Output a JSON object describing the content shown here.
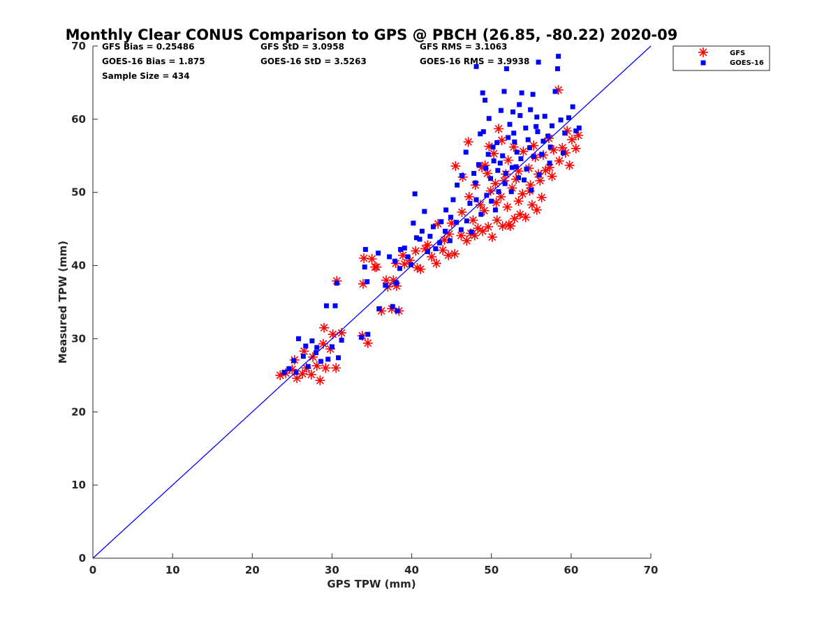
{
  "chart_data": {
    "type": "scatter",
    "title": "Monthly Clear CONUS Comparison to GPS @ PBCH (26.85, -80.22) 2020-09",
    "xlabel": "GPS TPW (mm)",
    "ylabel": "Measured TPW (mm)",
    "xlim": [
      0,
      70
    ],
    "ylim": [
      0,
      70
    ],
    "xticks": [
      "0",
      "10",
      "20",
      "30",
      "40",
      "50",
      "60",
      "70"
    ],
    "yticks": [
      "0",
      "10",
      "20",
      "30",
      "40",
      "50",
      "60",
      "70"
    ],
    "grid": false,
    "legend_position": "top-right, outside plot",
    "stats": {
      "gfs_bias": "GFS Bias = 0.25486",
      "gfs_std": "GFS StD = 3.0958",
      "gfs_rms": "GFS RMS = 3.1063",
      "goes_bias": "GOES-16 Bias = 1.875",
      "goes_std": "GOES-16 StD = 3.5263",
      "goes_rms": "GOES-16 RMS = 3.9938",
      "sample_size": "Sample Size = 434"
    },
    "reference_line": {
      "x": [
        0,
        70
      ],
      "y": [
        0,
        70
      ],
      "color": "#0000ff"
    },
    "series": [
      {
        "name": "GFS",
        "marker": "asterisk",
        "color": "#ff0000",
        "points": [
          [
            23.5,
            25.0
          ],
          [
            24.2,
            25.3
          ],
          [
            25.0,
            25.8
          ],
          [
            25.6,
            24.6
          ],
          [
            26.3,
            25.2
          ],
          [
            26.8,
            26.0
          ],
          [
            27.4,
            25.1
          ],
          [
            28.1,
            26.3
          ],
          [
            28.5,
            24.3
          ],
          [
            29.2,
            26.0
          ],
          [
            29.8,
            28.6
          ],
          [
            30.5,
            26.0
          ],
          [
            25.3,
            27.1
          ],
          [
            26.5,
            28.3
          ],
          [
            27.6,
            27.5
          ],
          [
            28.9,
            29.3
          ],
          [
            29.0,
            31.5
          ],
          [
            30.1,
            30.6
          ],
          [
            30.6,
            37.9
          ],
          [
            31.2,
            30.8
          ],
          [
            33.8,
            30.4
          ],
          [
            34.5,
            29.4
          ],
          [
            33.9,
            37.5
          ],
          [
            34.0,
            41.0
          ],
          [
            35.0,
            40.9
          ],
          [
            35.6,
            39.8
          ],
          [
            36.2,
            33.8
          ],
          [
            37.0,
            37.1
          ],
          [
            37.7,
            38.0
          ],
          [
            38.1,
            37.2
          ],
          [
            37.5,
            34.1
          ],
          [
            38.4,
            33.8
          ],
          [
            38.0,
            40.3
          ],
          [
            38.9,
            41.4
          ],
          [
            39.8,
            40.7
          ],
          [
            40.5,
            42.0
          ],
          [
            41.1,
            39.5
          ],
          [
            41.7,
            42.3
          ],
          [
            42.5,
            41.2
          ],
          [
            43.1,
            40.3
          ],
          [
            43.9,
            42.1
          ],
          [
            44.6,
            41.4
          ],
          [
            45.4,
            41.6
          ],
          [
            44.1,
            43.5
          ],
          [
            45.0,
            45.8
          ],
          [
            46.2,
            44.1
          ],
          [
            46.9,
            43.4
          ],
          [
            47.4,
            44.4
          ],
          [
            48.3,
            45.1
          ],
          [
            48.9,
            44.7
          ],
          [
            49.6,
            45.3
          ],
          [
            50.1,
            43.9
          ],
          [
            50.7,
            46.2
          ],
          [
            51.4,
            45.4
          ],
          [
            52.2,
            45.6
          ],
          [
            52.9,
            46.4
          ],
          [
            53.6,
            47.0
          ],
          [
            54.3,
            46.6
          ],
          [
            55.1,
            48.3
          ],
          [
            55.7,
            47.6
          ],
          [
            45.5,
            53.6
          ],
          [
            46.4,
            52.1
          ],
          [
            47.1,
            56.9
          ],
          [
            48.0,
            51.0
          ],
          [
            48.8,
            53.4
          ],
          [
            49.5,
            52.6
          ],
          [
            50.3,
            55.3
          ],
          [
            50.9,
            58.7
          ],
          [
            51.6,
            51.6
          ],
          [
            52.1,
            54.4
          ],
          [
            52.8,
            56.2
          ],
          [
            53.4,
            52.9
          ],
          [
            54.0,
            55.6
          ],
          [
            54.7,
            53.3
          ],
          [
            55.3,
            56.4
          ],
          [
            55.9,
            52.5
          ],
          [
            56.5,
            55.1
          ],
          [
            57.2,
            57.4
          ],
          [
            57.8,
            55.8
          ],
          [
            58.4,
            64.0
          ],
          [
            58.9,
            56.1
          ],
          [
            59.5,
            58.4
          ],
          [
            60.1,
            57.2
          ],
          [
            60.6,
            56.0
          ],
          [
            60.9,
            57.8
          ],
          [
            59.8,
            53.7
          ],
          [
            57.6,
            52.2
          ],
          [
            56.8,
            53.0
          ],
          [
            47.2,
            49.4
          ],
          [
            48.6,
            48.3
          ],
          [
            49.9,
            50.2
          ],
          [
            51.2,
            49.4
          ],
          [
            52.6,
            50.6
          ],
          [
            53.9,
            49.8
          ],
          [
            46.3,
            47.3
          ],
          [
            47.7,
            46.2
          ],
          [
            49.1,
            47.5
          ],
          [
            50.6,
            48.6
          ],
          [
            52.0,
            48.0
          ],
          [
            53.4,
            48.8
          ],
          [
            54.8,
            50.2
          ],
          [
            56.1,
            51.6
          ],
          [
            57.3,
            53.4
          ],
          [
            58.5,
            54.3
          ],
          [
            59.3,
            55.4
          ],
          [
            55.5,
            54.8
          ],
          [
            51.8,
            52.5
          ],
          [
            50.5,
            51.2
          ],
          [
            49.2,
            53.7
          ],
          [
            53.1,
            51.8
          ],
          [
            47.9,
            44.1
          ],
          [
            52.4,
            45.4
          ],
          [
            44.7,
            44.3
          ],
          [
            43.3,
            45.7
          ],
          [
            42.0,
            42.8
          ],
          [
            40.7,
            39.7
          ],
          [
            39.1,
            40.2
          ],
          [
            36.8,
            38.0
          ],
          [
            35.4,
            39.8
          ],
          [
            54.9,
            51.0
          ],
          [
            56.3,
            49.3
          ],
          [
            51.3,
            57.1
          ],
          [
            49.7,
            56.3
          ]
        ]
      },
      {
        "name": "GOES-16",
        "marker": "square",
        "color": "#0000ff",
        "points": [
          [
            24.0,
            25.4
          ],
          [
            24.6,
            25.9
          ],
          [
            25.2,
            27.0
          ],
          [
            25.8,
            30.0
          ],
          [
            26.4,
            27.6
          ],
          [
            27.0,
            26.2
          ],
          [
            27.5,
            29.7
          ],
          [
            28.1,
            28.8
          ],
          [
            28.6,
            26.9
          ],
          [
            29.3,
            34.5
          ],
          [
            30.0,
            28.9
          ],
          [
            30.4,
            34.5
          ],
          [
            30.8,
            27.4
          ],
          [
            31.2,
            29.8
          ],
          [
            28.0,
            28.1
          ],
          [
            26.7,
            29.0
          ],
          [
            25.5,
            25.4
          ],
          [
            29.5,
            27.2
          ],
          [
            30.6,
            37.6
          ],
          [
            33.7,
            30.2
          ],
          [
            34.5,
            30.6
          ],
          [
            34.1,
            39.8
          ],
          [
            34.2,
            42.2
          ],
          [
            34.4,
            37.8
          ],
          [
            35.8,
            41.7
          ],
          [
            35.9,
            34.1
          ],
          [
            36.7,
            37.3
          ],
          [
            37.2,
            41.2
          ],
          [
            37.6,
            34.4
          ],
          [
            38.2,
            33.8
          ],
          [
            38.1,
            37.6
          ],
          [
            38.6,
            42.2
          ],
          [
            39.5,
            41.2
          ],
          [
            40.2,
            45.8
          ],
          [
            40.4,
            49.8
          ],
          [
            41.0,
            43.6
          ],
          [
            41.6,
            47.4
          ],
          [
            42.3,
            44.0
          ],
          [
            43.0,
            42.3
          ],
          [
            43.7,
            46.0
          ],
          [
            44.3,
            47.6
          ],
          [
            44.8,
            43.4
          ],
          [
            45.2,
            49.0
          ],
          [
            45.7,
            51.0
          ],
          [
            46.3,
            52.3
          ],
          [
            46.8,
            55.5
          ],
          [
            47.3,
            48.5
          ],
          [
            48.0,
            51.3
          ],
          [
            48.1,
            67.2
          ],
          [
            48.6,
            58.0
          ],
          [
            48.9,
            63.6
          ],
          [
            49.2,
            62.6
          ],
          [
            49.7,
            60.1
          ],
          [
            50.3,
            54.3
          ],
          [
            50.7,
            56.8
          ],
          [
            51.2,
            61.2
          ],
          [
            51.6,
            63.8
          ],
          [
            51.9,
            66.9
          ],
          [
            52.3,
            59.3
          ],
          [
            52.7,
            61.0
          ],
          [
            53.1,
            53.5
          ],
          [
            53.5,
            62.0
          ],
          [
            53.8,
            63.6
          ],
          [
            54.3,
            58.8
          ],
          [
            54.8,
            56.1
          ],
          [
            55.2,
            63.4
          ],
          [
            55.6,
            59.0
          ],
          [
            55.9,
            67.8
          ],
          [
            56.3,
            55.2
          ],
          [
            56.7,
            60.4
          ],
          [
            57.1,
            57.7
          ],
          [
            57.6,
            59.1
          ],
          [
            58.0,
            63.8
          ],
          [
            58.4,
            68.6
          ],
          [
            58.3,
            66.9
          ],
          [
            58.7,
            59.9
          ],
          [
            59.2,
            58.1
          ],
          [
            59.7,
            60.2
          ],
          [
            60.2,
            61.7
          ],
          [
            60.6,
            58.4
          ],
          [
            61.0,
            58.8
          ],
          [
            59.0,
            55.4
          ],
          [
            57.3,
            54.0
          ],
          [
            56.0,
            52.4
          ],
          [
            55.0,
            50.3
          ],
          [
            54.1,
            51.7
          ],
          [
            53.2,
            55.5
          ],
          [
            52.5,
            50.1
          ],
          [
            51.8,
            52.6
          ],
          [
            51.1,
            54.0
          ],
          [
            50.5,
            47.6
          ],
          [
            49.9,
            51.9
          ],
          [
            49.3,
            53.3
          ],
          [
            48.7,
            47.0
          ],
          [
            48.1,
            49.0
          ],
          [
            47.5,
            44.6
          ],
          [
            46.9,
            46.1
          ],
          [
            46.2,
            44.9
          ],
          [
            45.6,
            45.9
          ],
          [
            44.9,
            46.6
          ],
          [
            44.2,
            44.7
          ],
          [
            43.5,
            43.1
          ],
          [
            42.7,
            45.3
          ],
          [
            42.0,
            41.9
          ],
          [
            41.3,
            44.7
          ],
          [
            40.6,
            43.8
          ],
          [
            39.9,
            40.1
          ],
          [
            39.1,
            42.4
          ],
          [
            38.5,
            39.6
          ],
          [
            37.9,
            40.6
          ],
          [
            54.6,
            57.2
          ],
          [
            53.7,
            54.6
          ],
          [
            52.9,
            56.9
          ],
          [
            52.1,
            57.5
          ],
          [
            51.4,
            55.0
          ],
          [
            50.8,
            53.0
          ],
          [
            50.2,
            56.2
          ],
          [
            49.6,
            55.2
          ],
          [
            49.0,
            58.3
          ],
          [
            48.4,
            53.8
          ],
          [
            47.8,
            52.6
          ],
          [
            56.5,
            57.0
          ],
          [
            57.4,
            56.2
          ],
          [
            55.8,
            58.3
          ],
          [
            55.3,
            54.9
          ],
          [
            54.4,
            53.2
          ],
          [
            53.4,
            52.0
          ],
          [
            52.6,
            53.4
          ],
          [
            51.7,
            51.2
          ],
          [
            50.9,
            50.1
          ],
          [
            50.0,
            48.8
          ],
          [
            49.4,
            49.6
          ],
          [
            55.7,
            60.3
          ],
          [
            54.9,
            61.3
          ],
          [
            53.6,
            60.5
          ],
          [
            52.8,
            58.1
          ]
        ]
      }
    ]
  }
}
